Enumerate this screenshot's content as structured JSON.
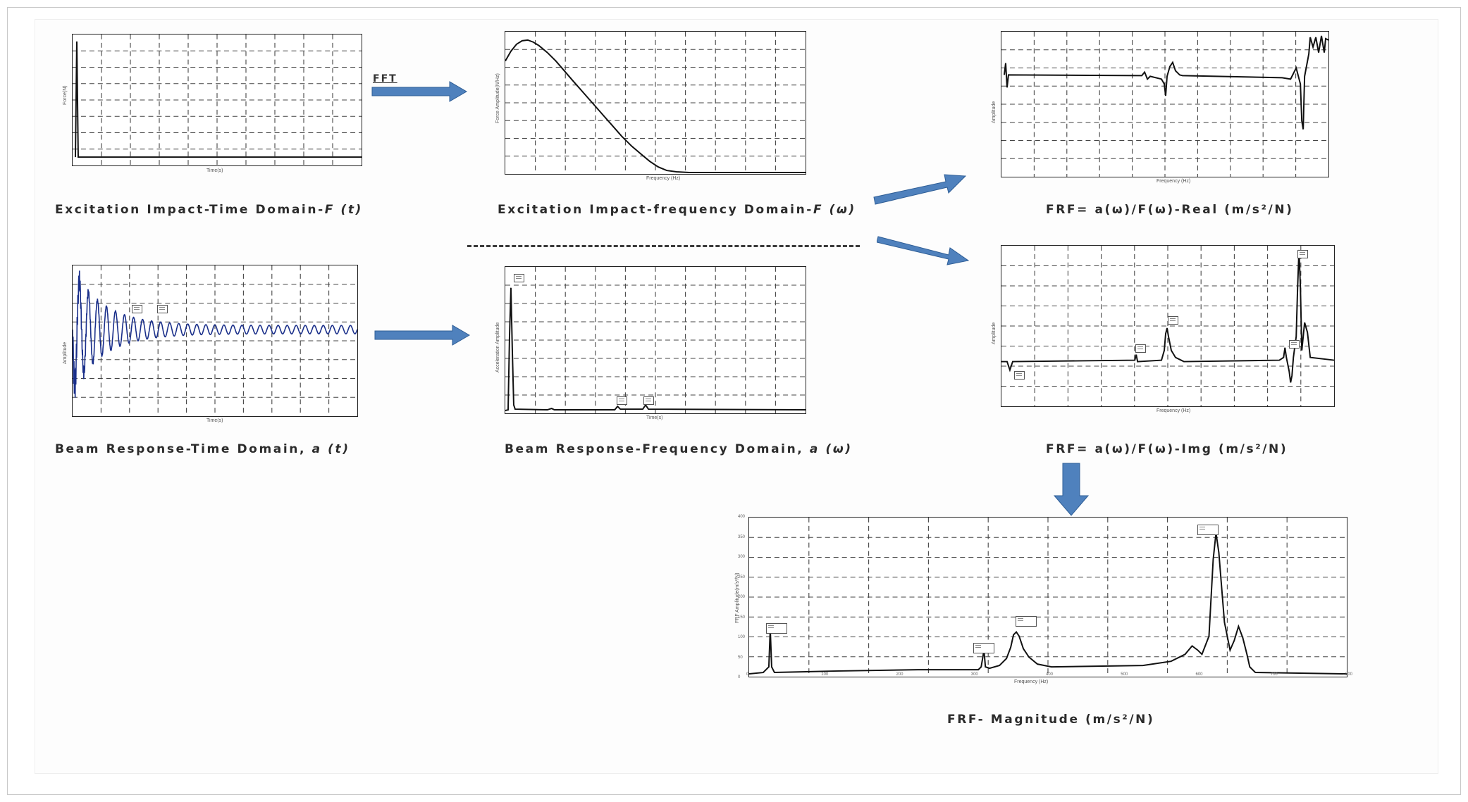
{
  "fft_label": "FFT",
  "captions": {
    "excitation_time": {
      "text": "Excitation Impact-Time Domain-",
      "symbol": "F (t)"
    },
    "excitation_freq": {
      "text": "Excitation Impact-frequency Domain-",
      "symbol": "F (ω)"
    },
    "frf_real": {
      "text": "FRF= a(ω)/F(ω)-Real (m/s²/N)"
    },
    "beam_time": {
      "text": "Beam Response-Time Domain, ",
      "symbol": "a (t)"
    },
    "beam_freq": {
      "text": "Beam Response-Frequency Domain, ",
      "symbol": "a (ω)"
    },
    "frf_img": {
      "text": "FRF= a(ω)/F(ω)-Img (m/s²/N)"
    },
    "frf_mag": {
      "text": "FRF- Magnitude (m/s²/N)"
    }
  },
  "axis_labels": {
    "time": "Time(s)",
    "frequency": "Frequency (Hz)",
    "force": "Force(N)",
    "force_amplitude": "Force Amplitude(N/Hz)",
    "amplitude": "Amplitude",
    "acceleration_amplitude": "Acceleration Amplitude",
    "frf_amplitude": "FRF Amplitude(m/s²/N)"
  },
  "magnitude_ticks": {
    "x": [
      "0",
      "100",
      "200",
      "300",
      "400",
      "500",
      "600",
      "700",
      "800"
    ],
    "y": [
      "0",
      "50",
      "100",
      "150",
      "200",
      "250",
      "300",
      "350",
      "400"
    ]
  },
  "colors": {
    "arrow_fill": "#4f81bd",
    "arrow_stroke": "#2f5e96",
    "beam_response_trace": "#1a2f8a",
    "trace": "#111111",
    "grid": "#444444"
  },
  "chart_data": [
    {
      "id": "excitation-time",
      "type": "line",
      "shape": "impulse at t=0 then flat zero",
      "points": [
        [
          0,
          0.05
        ],
        [
          0.01,
          0.95
        ],
        [
          0.02,
          0.05
        ],
        [
          10,
          0.05
        ]
      ],
      "xlim": [
        0,
        10
      ],
      "ylim": [
        0,
        1
      ]
    },
    {
      "id": "excitation-frequency",
      "type": "line",
      "shape": "broad hump decaying to zero",
      "points": [
        [
          0,
          0.78
        ],
        [
          40,
          0.88
        ],
        [
          80,
          0.8
        ],
        [
          200,
          0.55
        ],
        [
          330,
          0.25
        ],
        [
          450,
          0.06
        ],
        [
          560,
          0.01
        ],
        [
          800,
          0.01
        ]
      ],
      "xlim": [
        0,
        800
      ],
      "ylim": [
        0,
        1
      ]
    },
    {
      "id": "frf-real",
      "type": "line",
      "shape": "flat baseline with dispersive features near 310, 380, 720 Hz",
      "xlim": [
        0,
        800
      ],
      "ylim": [
        -1,
        1
      ]
    },
    {
      "id": "beam-time",
      "type": "line",
      "shape": "decaying oscillation",
      "xlim": [
        0,
        10
      ],
      "ylim": [
        -1,
        1
      ]
    },
    {
      "id": "beam-frequency",
      "type": "line",
      "shape": "dominant peak near 0 Hz, small peaks near 310 and 380 Hz",
      "peaks_hz": [
        18,
        310,
        380
      ],
      "xlim": [
        0,
        800
      ],
      "ylim": [
        0,
        1
      ]
    },
    {
      "id": "frf-img",
      "type": "line",
      "shape": "baseline with peaks near 310, 380, 760 Hz",
      "peaks_hz": [
        310,
        380,
        720,
        760
      ],
      "xlim": [
        0,
        800
      ],
      "ylim": [
        -1,
        1
      ]
    },
    {
      "id": "frf-magnitude",
      "type": "line",
      "xlabel": "Frequency (Hz)",
      "ylabel": "FRF Amplitude(m/s²/N)",
      "xlim": [
        0,
        800
      ],
      "ylim": [
        0,
        400
      ],
      "peaks": [
        {
          "freq": 18,
          "value": 65
        },
        {
          "freq": 310,
          "value": 50
        },
        {
          "freq": 380,
          "value": 105
        },
        {
          "freq": 720,
          "value": 45
        },
        {
          "freq": 760,
          "value": 330
        },
        {
          "freq": 790,
          "value": 120
        }
      ]
    }
  ]
}
